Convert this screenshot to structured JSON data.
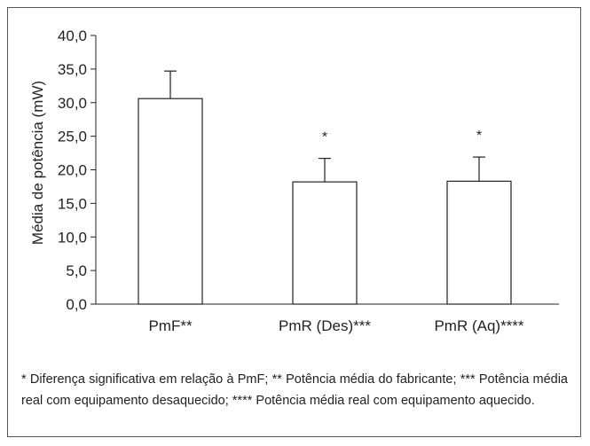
{
  "chart_data": {
    "type": "bar",
    "categories": [
      "PmF**",
      "PmR (Des)***",
      "PmR (Aq)****"
    ],
    "values": [
      30.6,
      18.2,
      18.3
    ],
    "error_upper": [
      34.7,
      21.7,
      21.9
    ],
    "significance_marks": [
      "",
      "*",
      "*"
    ],
    "ylabel": "Média de potência (mW)",
    "ylim": [
      0,
      40
    ],
    "yticks": [
      "0,0",
      "5,0",
      "10,0",
      "15,0",
      "20,0",
      "25,0",
      "30,0",
      "35,0",
      "40,0"
    ],
    "grid": false,
    "bar_fill": "#ffffff",
    "bar_stroke": "#222222"
  },
  "footnote": "* Diferença significativa em relação à PmF; ** Potência média do fabricante; *** Potência média real com equipamento desaquecido; **** Potência média real com equipamento aquecido."
}
